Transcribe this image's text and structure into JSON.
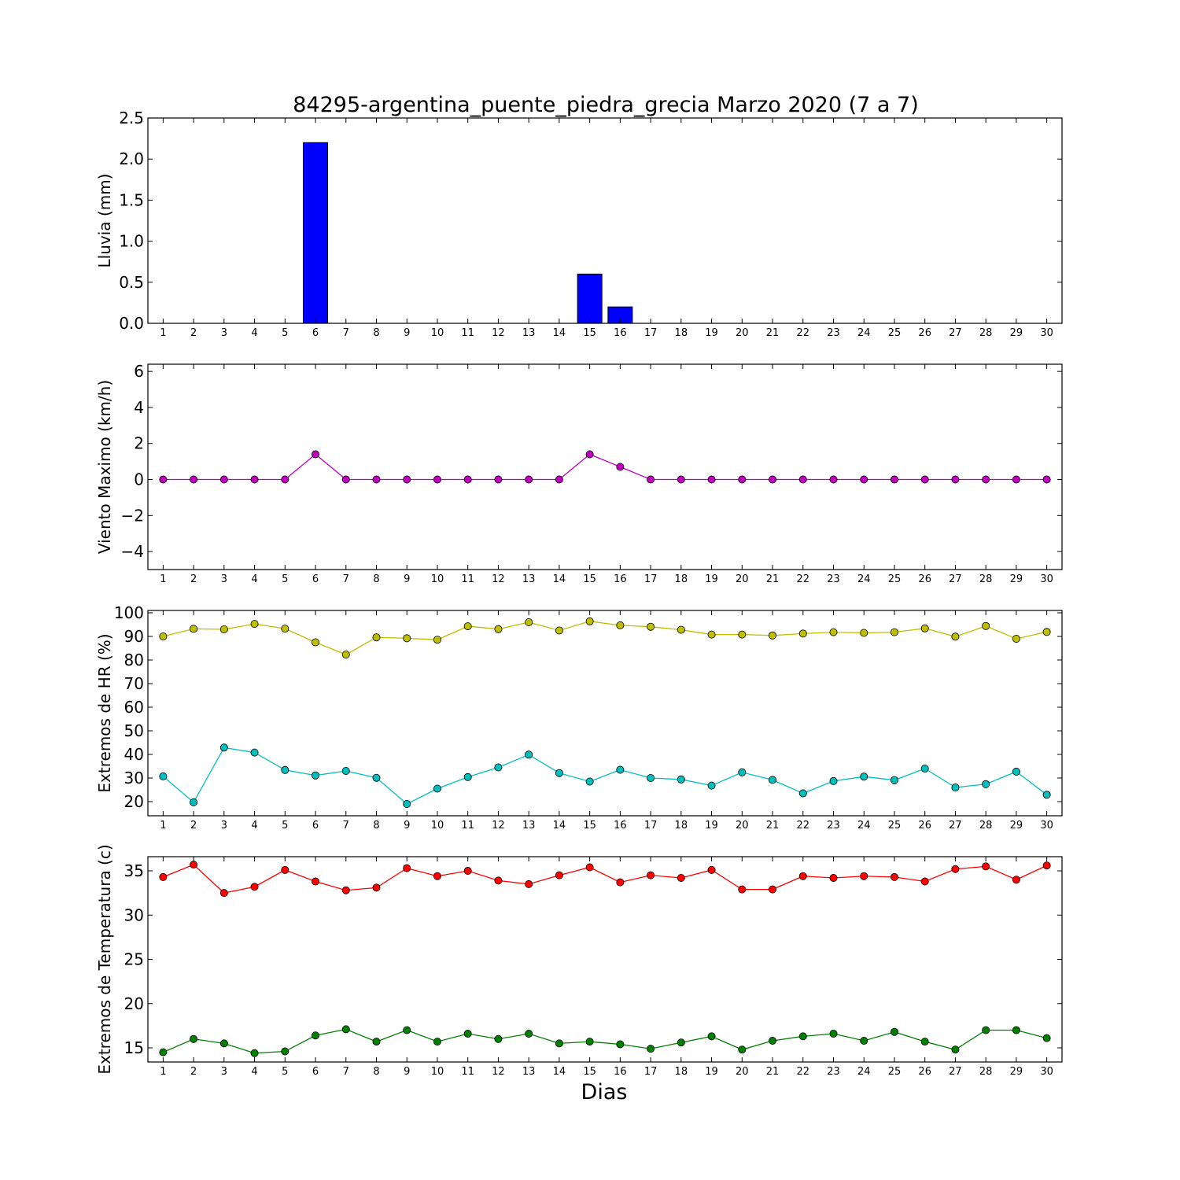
{
  "title": "84295-argentina_puente_piedra_grecia Marzo 2020  (7 a 7)",
  "xlabel": "Dias",
  "chart_data": [
    {
      "type": "bar",
      "ylabel": "Lluvia (mm)",
      "ylim": [
        0,
        2.5
      ],
      "yticks": [
        0,
        0.5,
        1.0,
        1.5,
        2.0,
        2.5
      ],
      "ytick_labels": [
        "0.0",
        "0.5",
        "1.0",
        "1.5",
        "2.0",
        "2.5"
      ],
      "x": [
        1,
        2,
        3,
        4,
        5,
        6,
        7,
        8,
        9,
        10,
        11,
        12,
        13,
        14,
        15,
        16,
        17,
        18,
        19,
        20,
        21,
        22,
        23,
        24,
        25,
        26,
        27,
        28,
        29,
        30
      ],
      "series": [
        {
          "color": "#0000ff",
          "values": [
            0,
            0,
            0,
            0,
            0,
            2.2,
            0,
            0,
            0,
            0,
            0,
            0,
            0,
            0,
            0.6,
            0.2,
            0,
            0,
            0,
            0,
            0,
            0,
            0,
            0,
            0,
            0,
            0,
            0,
            0,
            0
          ]
        }
      ]
    },
    {
      "type": "line",
      "ylabel": "Viento Maximo (km/h)",
      "ylim": [
        -5,
        6.4
      ],
      "yticks": [
        -4,
        -2,
        0,
        2,
        4,
        6
      ],
      "ytick_labels": [
        "−4",
        "−2",
        "0",
        "2",
        "4",
        "6"
      ],
      "x": [
        1,
        2,
        3,
        4,
        5,
        6,
        7,
        8,
        9,
        10,
        11,
        12,
        13,
        14,
        15,
        16,
        17,
        18,
        19,
        20,
        21,
        22,
        23,
        24,
        25,
        26,
        27,
        28,
        29,
        30
      ],
      "series": [
        {
          "color": "#bf00bf",
          "values": [
            0,
            0,
            0,
            0,
            0,
            1.4,
            0,
            0,
            0,
            0,
            0,
            0,
            0,
            0,
            1.4,
            0.7,
            0,
            0,
            0,
            0,
            0,
            0,
            0,
            0,
            0,
            0,
            0,
            0,
            0,
            0
          ]
        }
      ]
    },
    {
      "type": "line",
      "ylabel": "Extremos de HR (%)",
      "ylim": [
        14,
        101
      ],
      "yticks": [
        20,
        30,
        40,
        50,
        60,
        70,
        80,
        90,
        100
      ],
      "ytick_labels": [
        "20",
        "30",
        "40",
        "50",
        "60",
        "70",
        "80",
        "90",
        "100"
      ],
      "x": [
        1,
        2,
        3,
        4,
        5,
        6,
        7,
        8,
        9,
        10,
        11,
        12,
        13,
        14,
        15,
        16,
        17,
        18,
        19,
        20,
        21,
        22,
        23,
        24,
        25,
        26,
        27,
        28,
        29,
        30
      ],
      "series": [
        {
          "color": "#bfbf00",
          "values": [
            90,
            93.2,
            93,
            95.3,
            93.3,
            87.5,
            82.3,
            89.6,
            89.2,
            88.6,
            94.3,
            93.1,
            96,
            92.5,
            96.4,
            94.7,
            94.1,
            92.8,
            90.8,
            90.8,
            90.4,
            91.2,
            91.8,
            91.5,
            91.8,
            93.4,
            89.9,
            94.4,
            89,
            91.9
          ]
        },
        {
          "color": "#00bfbf",
          "values": [
            30.7,
            19.7,
            42.9,
            40.8,
            33.4,
            31.1,
            33,
            30.1,
            19,
            25.5,
            30.4,
            34.5,
            39.9,
            32.1,
            28.5,
            33.5,
            30,
            29.4,
            26.8,
            32.4,
            29.2,
            23.5,
            28.7,
            30.6,
            29.1,
            34,
            26,
            27.4,
            32.7,
            22.9
          ]
        }
      ]
    },
    {
      "type": "line",
      "ylabel": "Extremos de Temperatura (c)",
      "ylim": [
        13.4,
        36.6
      ],
      "yticks": [
        15,
        20,
        25,
        30,
        35
      ],
      "ytick_labels": [
        "15",
        "20",
        "25",
        "30",
        "35"
      ],
      "x": [
        1,
        2,
        3,
        4,
        5,
        6,
        7,
        8,
        9,
        10,
        11,
        12,
        13,
        14,
        15,
        16,
        17,
        18,
        19,
        20,
        21,
        22,
        23,
        24,
        25,
        26,
        27,
        28,
        29,
        30
      ],
      "series": [
        {
          "color": "#ff0000",
          "values": [
            34.3,
            35.7,
            32.5,
            33.2,
            35.1,
            33.8,
            32.8,
            33.1,
            35.3,
            34.4,
            35,
            33.9,
            33.5,
            34.5,
            35.4,
            33.7,
            34.5,
            34.2,
            35.1,
            32.9,
            32.9,
            34.4,
            34.2,
            34.4,
            34.3,
            33.8,
            35.2,
            35.5,
            34,
            35.6
          ]
        },
        {
          "color": "#008000",
          "values": [
            14.5,
            16,
            15.5,
            14.4,
            14.6,
            16.4,
            17.1,
            15.7,
            17,
            15.7,
            16.6,
            16,
            16.6,
            15.5,
            15.7,
            15.4,
            14.9,
            15.6,
            16.3,
            14.8,
            15.8,
            16.3,
            16.6,
            15.8,
            16.8,
            15.7,
            14.8,
            17,
            17,
            16.1
          ]
        }
      ]
    }
  ]
}
